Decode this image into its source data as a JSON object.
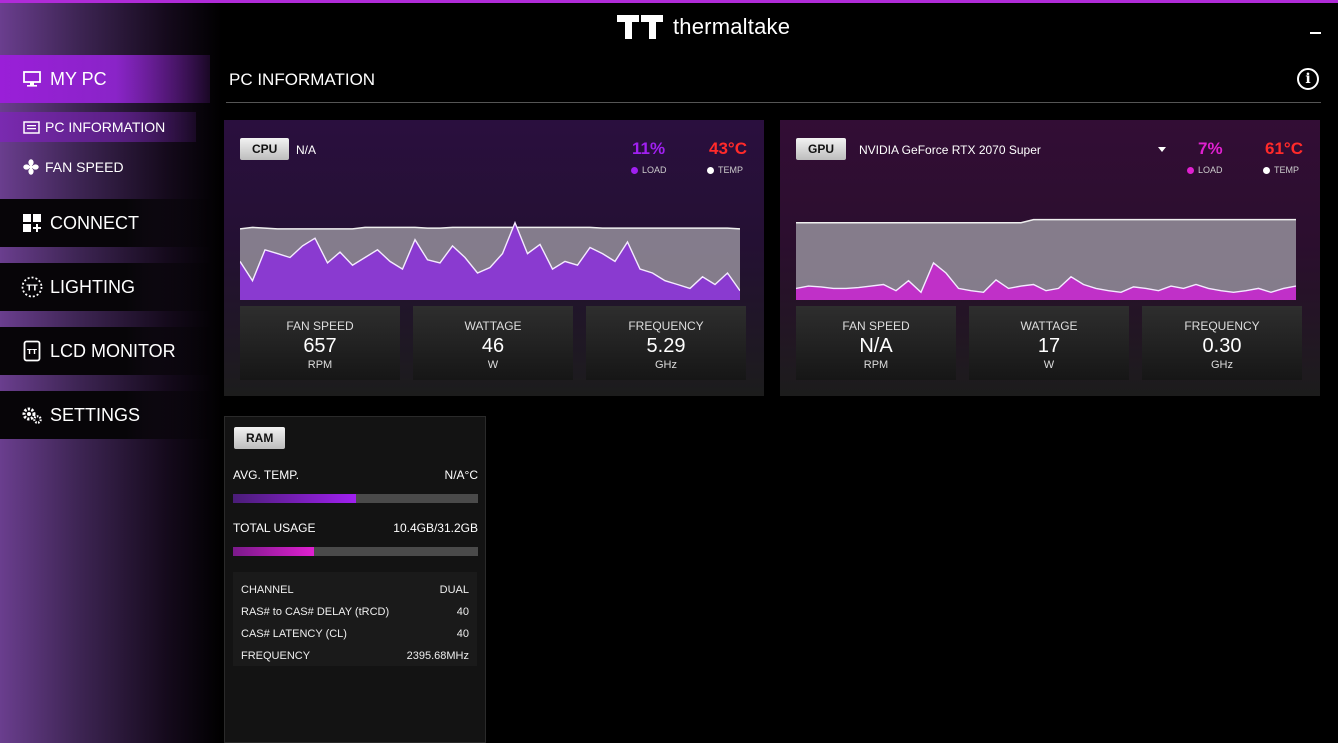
{
  "app": {
    "brand": "thermaltake",
    "accent": "#9a1fd8"
  },
  "sidebar": {
    "items": [
      {
        "label": "MY PC",
        "icon": "monitor-icon",
        "active": true
      },
      {
        "label": "PC INFORMATION",
        "icon": "pc-info-icon",
        "active": true,
        "sub": true
      },
      {
        "label": "FAN SPEED",
        "icon": "fan-icon",
        "sub": true
      },
      {
        "label": "CONNECT",
        "icon": "connect-icon"
      },
      {
        "label": "LIGHTING",
        "icon": "lighting-icon"
      },
      {
        "label": "LCD MONITOR",
        "icon": "lcd-monitor-icon"
      },
      {
        "label": "SETTINGS",
        "icon": "gears-icon"
      }
    ]
  },
  "header": {
    "title": "PC INFORMATION"
  },
  "cpu": {
    "tag": "CPU",
    "model": "N/A",
    "load": "11%",
    "temp": "43°C",
    "load_label": "LOAD",
    "temp_label": "TEMP",
    "load_color": "#a020f0",
    "temp_color": "#ff2a2a",
    "stats": [
      {
        "label": "FAN SPEED",
        "value": "657",
        "unit": "RPM"
      },
      {
        "label": "WATTAGE",
        "value": "46",
        "unit": "W"
      },
      {
        "label": "FREQUENCY",
        "value": "5.29",
        "unit": "GHz"
      }
    ],
    "chart_data": {
      "type": "area",
      "series": [
        {
          "values": [
            92,
            94,
            93,
            92,
            92,
            92,
            92,
            92,
            92,
            92,
            94,
            94,
            94,
            94,
            94,
            93,
            93,
            94,
            94,
            94,
            94,
            94,
            94,
            94,
            94,
            94,
            94,
            94,
            94,
            93,
            93,
            93,
            93,
            93,
            93,
            93,
            93,
            93,
            93,
            93,
            92
          ]
        },
        {
          "values": [
            50,
            25,
            65,
            60,
            55,
            70,
            80,
            48,
            62,
            45,
            55,
            65,
            50,
            40,
            78,
            52,
            48,
            70,
            55,
            35,
            42,
            60,
            100,
            60,
            72,
            40,
            50,
            45,
            68,
            60,
            50,
            75,
            40,
            35,
            25,
            20,
            15,
            30,
            20,
            35,
            12
          ]
        }
      ]
    }
  },
  "gpu": {
    "tag": "GPU",
    "model": "NVIDIA GeForce RTX 2070 Super",
    "load": "7%",
    "temp": "61°C",
    "load_label": "LOAD",
    "temp_label": "TEMP",
    "load_color": "#e020d0",
    "temp_color": "#ff2a2a",
    "stats": [
      {
        "label": "FAN SPEED",
        "value": "N/A",
        "unit": "RPM"
      },
      {
        "label": "WATTAGE",
        "value": "17",
        "unit": "W"
      },
      {
        "label": "FREQUENCY",
        "value": "0.30",
        "unit": "GHz"
      }
    ],
    "chart_data": {
      "type": "area",
      "series": [
        {
          "values": [
            100,
            100,
            100,
            100,
            100,
            100,
            100,
            100,
            100,
            100,
            100,
            100,
            100,
            100,
            100,
            100,
            100,
            100,
            100,
            104,
            104,
            104,
            104,
            104,
            104,
            104,
            104,
            104,
            104,
            104,
            104,
            104,
            104,
            104,
            104,
            104,
            104,
            104,
            104,
            104,
            104
          ]
        },
        {
          "values": [
            15,
            18,
            17,
            15,
            15,
            16,
            18,
            20,
            12,
            25,
            10,
            48,
            35,
            15,
            12,
            10,
            26,
            15,
            18,
            20,
            12,
            15,
            30,
            20,
            15,
            12,
            10,
            17,
            15,
            12,
            18,
            15,
            20,
            15,
            12,
            10,
            12,
            15,
            10,
            15,
            18
          ]
        }
      ]
    }
  },
  "ram": {
    "tag": "RAM",
    "avg_temp_label": "AVG. TEMP.",
    "avg_temp_value": "N/A°C",
    "avg_temp_fraction": 0.5,
    "usage_label": "TOTAL USAGE",
    "usage_value": "10.4GB/31.2GB",
    "usage_fraction": 0.33,
    "specs": [
      {
        "label": "CHANNEL",
        "value": "DUAL"
      },
      {
        "label": "RAS# to CAS# DELAY (tRCD)",
        "value": "40"
      },
      {
        "label": "CAS# LATENCY (CL)",
        "value": "40"
      },
      {
        "label": "FREQUENCY",
        "value": "2395.68MHz"
      }
    ]
  }
}
